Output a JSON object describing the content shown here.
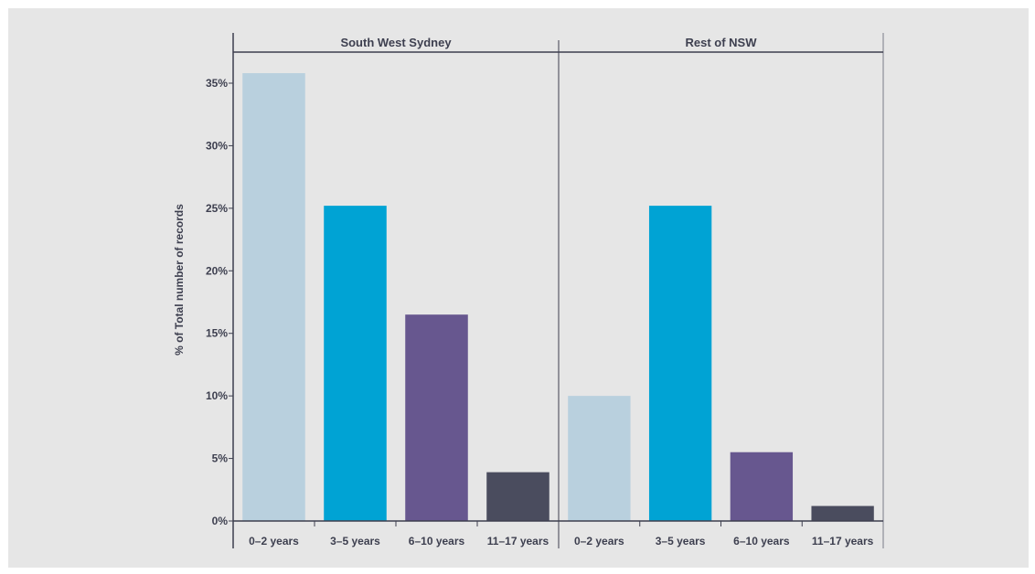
{
  "chart_data": {
    "type": "bar",
    "ylabel": "% of Total number of records",
    "xlabel": "",
    "ylim": [
      0,
      37
    ],
    "yticks": [
      0,
      5,
      10,
      15,
      20,
      25,
      30,
      35
    ],
    "ytick_labels": [
      "0%",
      "5%",
      "10%",
      "15%",
      "20%",
      "25%",
      "30%",
      "35%"
    ],
    "categories": [
      "0–2 years",
      "3–5 years",
      "6–10 years",
      "11–17 years"
    ],
    "category_colors": [
      "#b9d0de",
      "#00a3d4",
      "#67578f",
      "#4a4c5e"
    ],
    "panels": [
      {
        "title": "South West Sydney",
        "values": [
          35.8,
          25.2,
          16.5,
          3.9
        ]
      },
      {
        "title": "Rest of NSW",
        "values": [
          10.0,
          25.2,
          5.5,
          1.2
        ]
      }
    ],
    "grid": false,
    "legend": "none"
  }
}
